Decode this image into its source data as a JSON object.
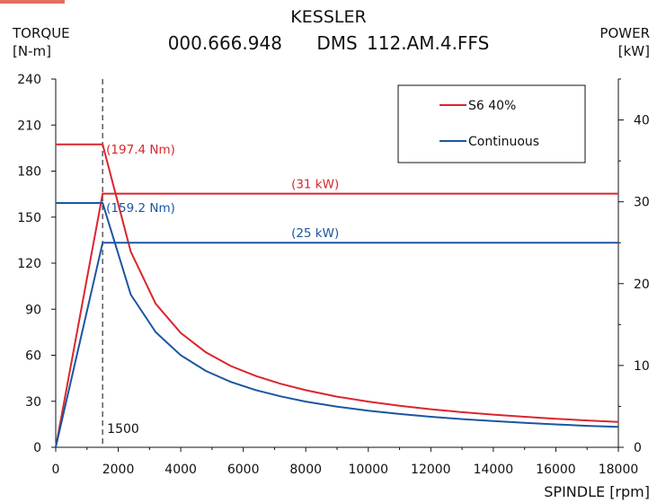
{
  "header": {
    "title": "KESSLER",
    "part_number": "000.666.948",
    "model": "DMS 112.AM.4.FFS"
  },
  "chart_data": {
    "type": "line",
    "title": "KESSLER",
    "xlabel": "SPINDLE [rpm]",
    "ylabel_left": {
      "name": "TORQUE",
      "unit": "[N-m]"
    },
    "ylabel_right": {
      "name": "POWER",
      "unit": "[kW]"
    },
    "xlim": [
      0,
      18000
    ],
    "ylim_left": [
      0,
      240
    ],
    "ylim_right": [
      0,
      45
    ],
    "x_ticks": [
      0,
      2000,
      4000,
      6000,
      8000,
      10000,
      12000,
      14000,
      16000,
      18000
    ],
    "y_left_ticks": [
      0,
      30,
      60,
      90,
      120,
      150,
      180,
      210,
      240
    ],
    "y_right_ticks": [
      0,
      10,
      20,
      30,
      40
    ],
    "grid": false,
    "legend_position": "top-right",
    "colors": {
      "s6": "#d9262c",
      "continuous": "#1a56a0",
      "marker": "#333333"
    },
    "base_speed_rpm": 1500,
    "base_speed_label": "1500",
    "series": [
      {
        "name": "S6 40%",
        "color": "#d9262c",
        "torque_x": [
          0,
          1500,
          2400,
          3200,
          4000,
          4800,
          5600,
          6400,
          7200,
          8000,
          9000,
          10000,
          11000,
          12000,
          13000,
          14000,
          15000,
          16000,
          17000,
          18000
        ],
        "torque_y": [
          197.4,
          197.4,
          127.5,
          93.5,
          74.5,
          62.0,
          53.0,
          46.5,
          41.4,
          37.2,
          33.0,
          29.8,
          27.1,
          24.8,
          22.9,
          21.3,
          19.9,
          18.6,
          17.5,
          16.5
        ],
        "power_x": [
          0,
          1500,
          18000
        ],
        "power_y": [
          0,
          31,
          31
        ],
        "torque_label": "(197.4 Nm)",
        "power_label": "(31 kW)"
      },
      {
        "name": "Continuous",
        "color": "#1a56a0",
        "torque_x": [
          0,
          1500,
          2400,
          3200,
          4000,
          4800,
          5600,
          6400,
          7200,
          8000,
          9000,
          10000,
          11000,
          12000,
          13000,
          14000,
          15000,
          16000,
          17000,
          18000
        ],
        "torque_y": [
          159.2,
          159.2,
          99.5,
          75.0,
          60.0,
          49.8,
          42.6,
          37.3,
          33.2,
          29.8,
          26.5,
          23.9,
          21.7,
          19.9,
          18.4,
          17.1,
          15.9,
          14.9,
          14.0,
          13.3
        ],
        "power_x": [
          0,
          1500,
          18000
        ],
        "power_y": [
          0,
          25,
          25
        ],
        "torque_label": "(159.2 Nm)",
        "power_label": "(25 kW)"
      }
    ]
  }
}
